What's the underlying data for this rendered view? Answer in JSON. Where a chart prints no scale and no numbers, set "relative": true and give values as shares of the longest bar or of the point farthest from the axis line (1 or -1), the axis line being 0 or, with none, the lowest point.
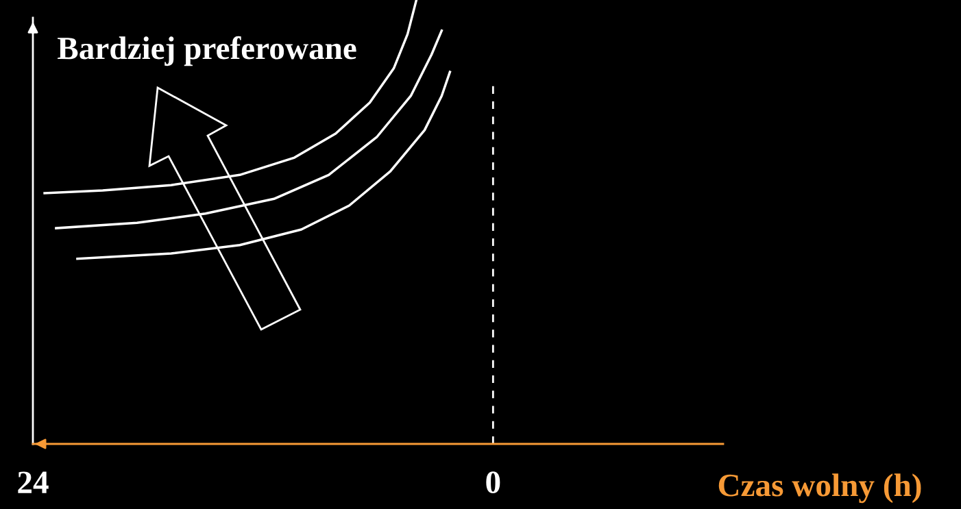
{
  "chart_data": {
    "type": "line",
    "relative": true,
    "xlabel": "Czas wolny (h)",
    "xlim": [
      24,
      -12
    ],
    "xticks": [
      24,
      0
    ],
    "grid": false,
    "legend": false,
    "marker": "none",
    "line_style": "solid",
    "annotations": [
      "Bardziej preferowane"
    ],
    "ref_lines": [
      {
        "axis": "x",
        "value": 0,
        "label": null,
        "color": "#ffffff",
        "line_style": "dashed"
      }
    ],
    "series": [
      {
        "color": "#ffffff",
        "x": [
          23.39,
          20.36,
          16.79,
          13.21,
          10.36,
          8.21,
          6.43,
          5.18,
          4.46,
          4.0
        ],
        "values": [
          0.565,
          0.571,
          0.583,
          0.606,
          0.645,
          0.699,
          0.769,
          0.846,
          0.923,
          1.0
        ]
      },
      {
        "color": "#ffffff",
        "x": [
          22.79,
          18.57,
          15.0,
          11.43,
          8.57,
          6.07,
          4.29,
          3.21,
          2.68
        ],
        "values": [
          0.486,
          0.498,
          0.519,
          0.552,
          0.606,
          0.691,
          0.784,
          0.877,
          0.931
        ]
      },
      {
        "color": "#ffffff",
        "x": [
          21.68,
          16.79,
          13.21,
          10.0,
          7.5,
          5.36,
          3.57,
          2.68,
          2.25
        ],
        "values": [
          0.417,
          0.429,
          0.448,
          0.483,
          0.537,
          0.614,
          0.707,
          0.784,
          0.838
        ]
      }
    ]
  }
}
